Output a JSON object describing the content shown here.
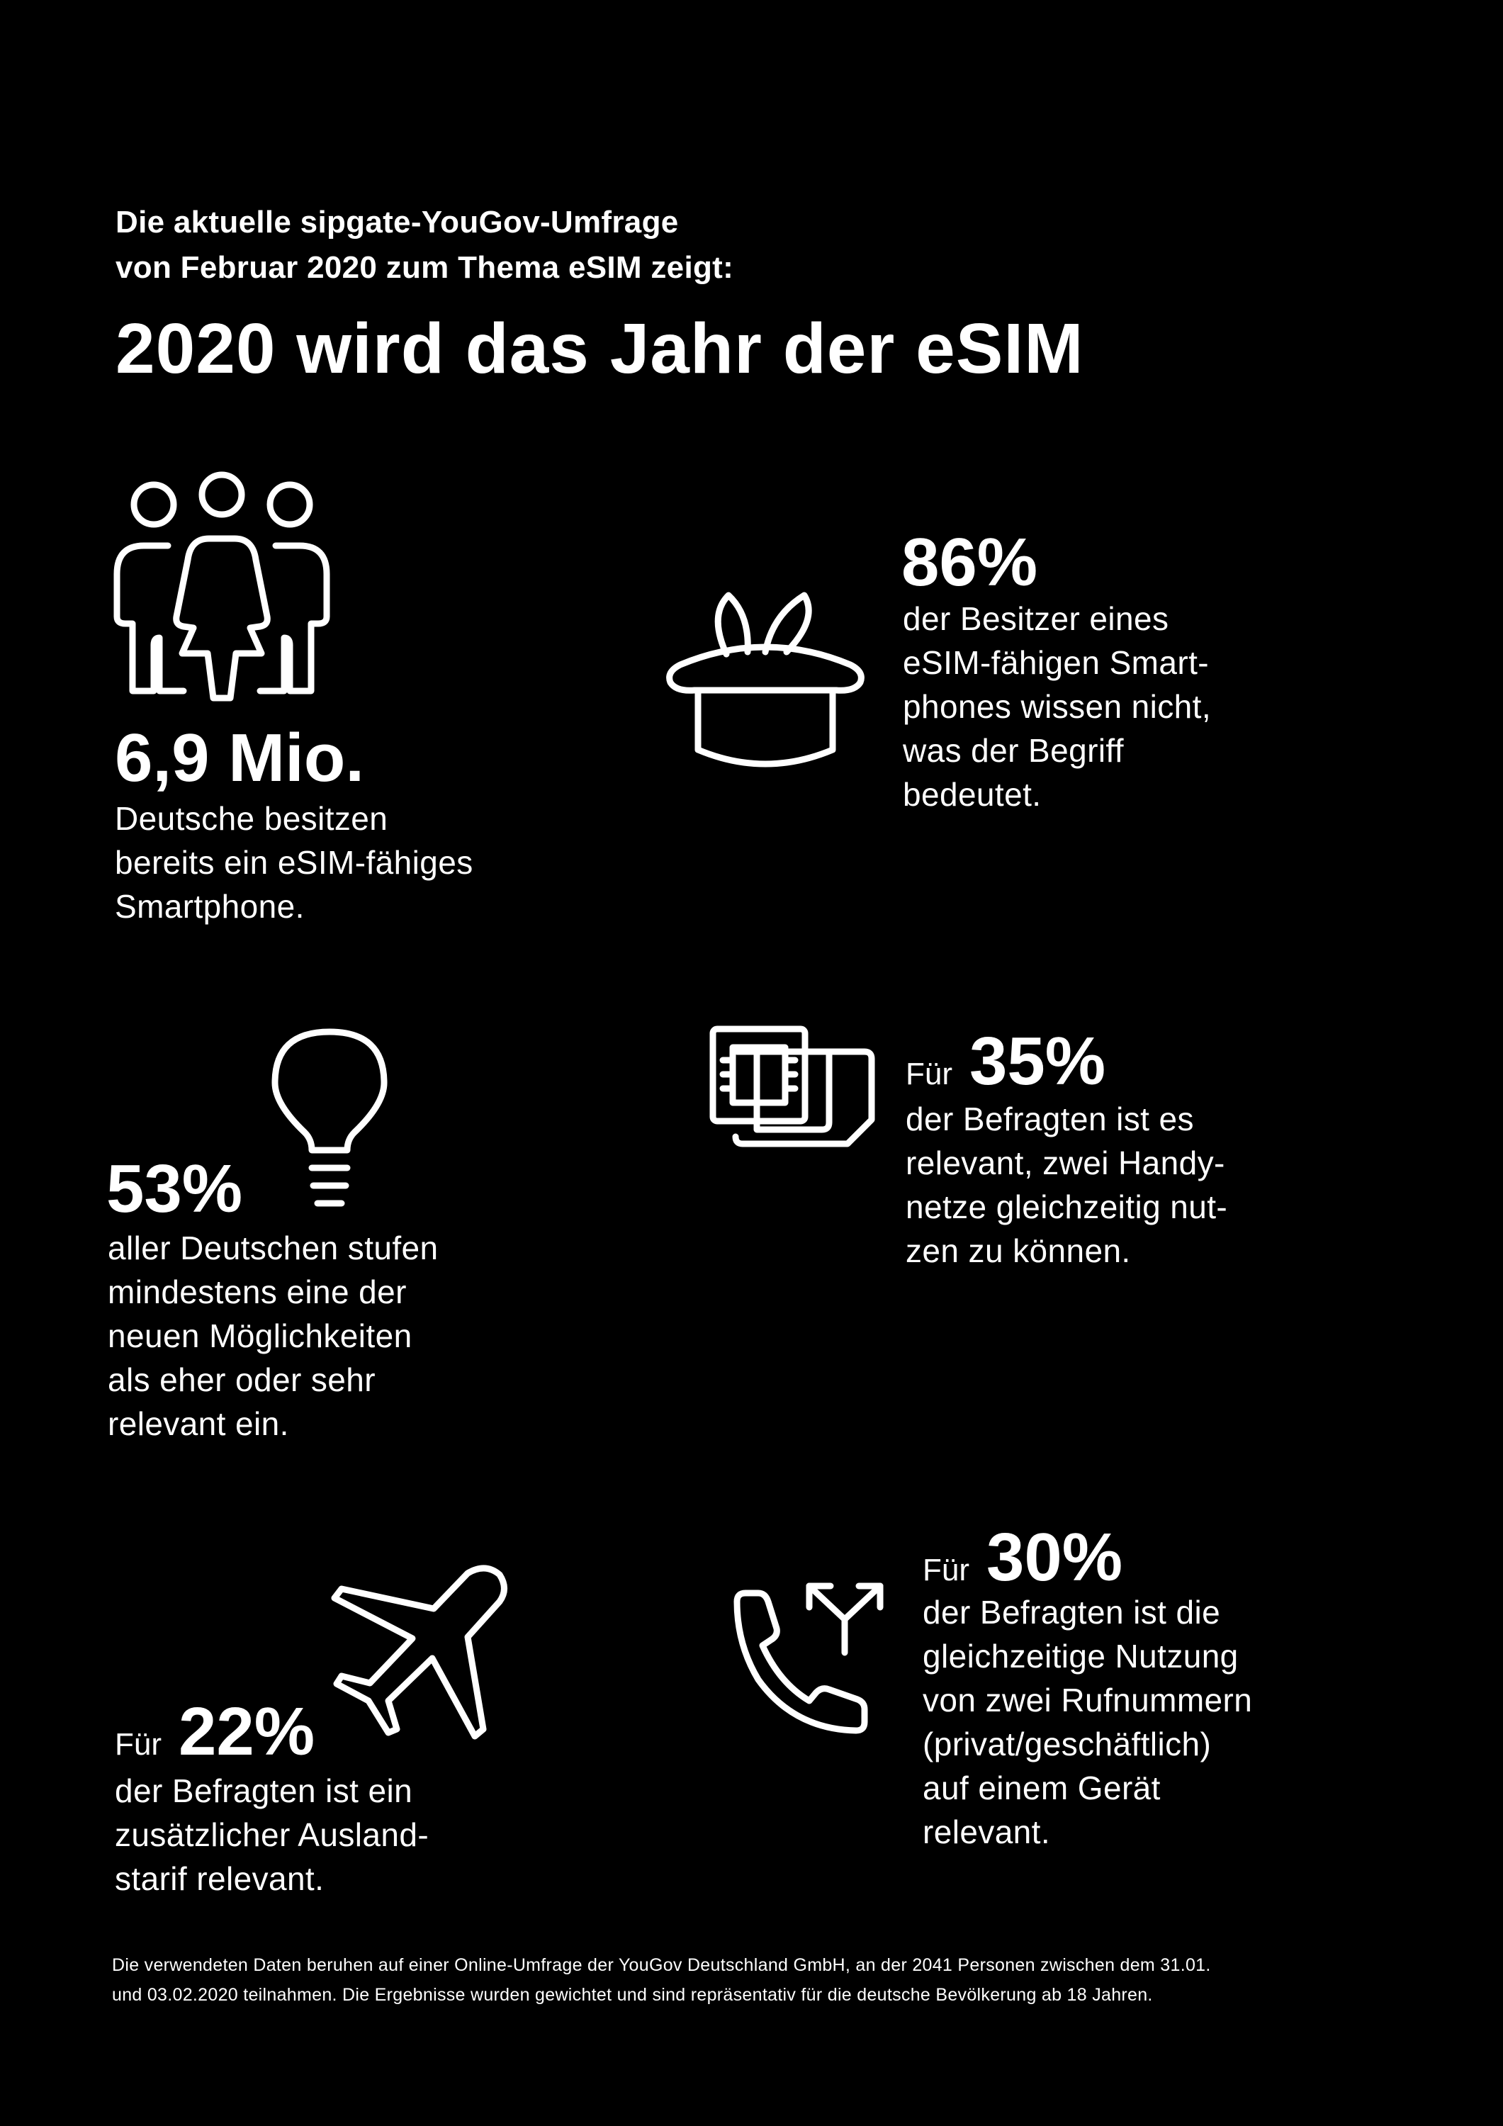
{
  "header": {
    "intro_line1": "Die aktuelle sipgate-YouGov-Umfrage",
    "intro_line2": "von Februar 2020 zum Thema eSIM zeigt:",
    "headline": "2020 wird das Jahr der eSIM"
  },
  "stats": [
    {
      "icon": "people-group-icon",
      "value": "6,9 Mio.",
      "prefix": "",
      "lines": [
        "Deutsche besitzen",
        "bereits ein eSIM-fähiges",
        "Smartphone."
      ]
    },
    {
      "icon": "magic-hat-icon",
      "value": "86%",
      "prefix": "",
      "lines": [
        "der Besitzer eines",
        "eSIM-fähigen Smart-",
        "phones wissen nicht,",
        "was der Begriff",
        "bedeutet."
      ]
    },
    {
      "icon": "lightbulb-icon",
      "value": "53%",
      "prefix": "",
      "lines": [
        "aller Deutschen stufen",
        "mindestens eine der",
        "neuen Möglichkeiten",
        "als eher oder sehr",
        "relevant ein."
      ]
    },
    {
      "icon": "dual-sim-icon",
      "value": "35%",
      "prefix": "Für",
      "lines": [
        "der Befragten ist es",
        "relevant, zwei Handy-",
        "netze gleichzeitig nut-",
        "zen zu können."
      ]
    },
    {
      "icon": "airplane-icon",
      "value": "22%",
      "prefix": "Für",
      "lines": [
        "der Befragten ist ein",
        "zusätzlicher Ausland-",
        "starif relevant."
      ]
    },
    {
      "icon": "phone-split-icon",
      "value": "30%",
      "prefix": "Für",
      "lines": [
        "der Befragten ist die",
        "gleichzeitige Nutzung",
        "von zwei Rufnummern",
        "(privat/geschäftlich)",
        "auf einem Gerät",
        "relevant."
      ]
    }
  ],
  "footnote": {
    "line1": "Die verwendeten Daten beruhen auf einer Online-Umfrage der YouGov Deutschland GmbH, an der 2041 Personen zwischen dem 31.01.",
    "line2": "und 03.02.2020 teilnahmen. Die Ergebnisse wurden gewichtet und sind repräsentativ für die deutsche Bevölkerung ab 18 Jahren."
  }
}
